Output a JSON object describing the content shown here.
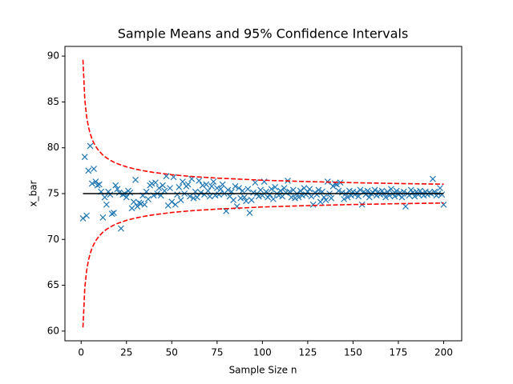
{
  "chart_data": {
    "type": "scatter",
    "title": "Sample Means and 95% Confidence Intervals",
    "xlabel": "Sample Size n",
    "ylabel": "x_bar",
    "xlim": [
      -8.95,
      209.95
    ],
    "ylim": [
      58.94,
      91.06
    ],
    "xticks": [
      0,
      25,
      50,
      75,
      100,
      125,
      150,
      175,
      200
    ],
    "yticks": [
      60,
      65,
      70,
      75,
      80,
      85,
      90
    ],
    "series": [
      {
        "type": "scatter",
        "color": "#1f77b4",
        "x": [
          1,
          2,
          3,
          4,
          5,
          6,
          7,
          8,
          9,
          10,
          11,
          12,
          13,
          14,
          15,
          16,
          17,
          18,
          19,
          20,
          21,
          22,
          23,
          24,
          25,
          26,
          27,
          28,
          29,
          30,
          31,
          32,
          33,
          34,
          35,
          36,
          37,
          38,
          39,
          40,
          41,
          42,
          43,
          44,
          45,
          46,
          47,
          48,
          49,
          50,
          51,
          52,
          53,
          54,
          55,
          56,
          57,
          58,
          59,
          60,
          61,
          62,
          63,
          64,
          65,
          66,
          67,
          68,
          69,
          70,
          71,
          72,
          73,
          74,
          75,
          76,
          77,
          78,
          79,
          80,
          81,
          82,
          83,
          84,
          85,
          86,
          87,
          88,
          89,
          90,
          91,
          92,
          93,
          94,
          95,
          96,
          97,
          98,
          99,
          100,
          101,
          102,
          103,
          104,
          105,
          106,
          107,
          108,
          109,
          110,
          111,
          112,
          113,
          114,
          115,
          116,
          117,
          118,
          119,
          120,
          121,
          122,
          123,
          124,
          125,
          126,
          127,
          128,
          129,
          130,
          131,
          132,
          133,
          134,
          135,
          136,
          137,
          138,
          139,
          140,
          141,
          142,
          143,
          144,
          145,
          146,
          147,
          148,
          149,
          150,
          151,
          152,
          153,
          154,
          155,
          156,
          157,
          158,
          159,
          160,
          161,
          162,
          163,
          164,
          165,
          166,
          167,
          168,
          169,
          170,
          171,
          172,
          173,
          174,
          175,
          176,
          177,
          178,
          179,
          180,
          181,
          182,
          183,
          184,
          185,
          186,
          187,
          188,
          189,
          190,
          191,
          192,
          193,
          194,
          195,
          196,
          197,
          198,
          199,
          200
        ],
        "values": [
          72.3,
          79.0,
          72.6,
          77.5,
          80.2,
          76.1,
          77.7,
          76.3,
          75.9,
          76.0,
          75.2,
          72.4,
          74.6,
          73.8,
          75.2,
          74.9,
          72.8,
          72.9,
          75.9,
          75.5,
          75.1,
          71.2,
          74.9,
          75.0,
          74.6,
          75.3,
          75.1,
          73.4,
          74.1,
          76.5,
          73.6,
          74.0,
          73.9,
          74.8,
          73.8,
          75.2,
          74.4,
          75.9,
          76.1,
          74.8,
          76.2,
          75.0,
          75.6,
          74.8,
          75.9,
          75.3,
          76.9,
          73.7,
          75.6,
          74.1,
          76.8,
          73.8,
          74.9,
          75.7,
          74.3,
          76.3,
          75.0,
          75.8,
          76.0,
          74.7,
          76.6,
          74.5,
          75.2,
          74.6,
          76.4,
          75.1,
          75.9,
          74.9,
          76.0,
          75.3,
          74.7,
          75.8,
          76.3,
          74.8,
          75.6,
          74.9,
          75.5,
          76.0,
          75.0,
          73.1,
          75.4,
          74.7,
          75.2,
          74.3,
          75.8,
          73.6,
          75.6,
          74.5,
          75.3,
          74.6,
          74.2,
          75.5,
          72.9,
          74.3,
          75.1,
          76.2,
          75.0,
          74.7,
          75.4,
          74.8,
          76.3,
          75.2,
          74.6,
          74.9,
          75.5,
          74.4,
          75.7,
          75.0,
          74.8,
          75.3,
          74.7,
          75.6,
          75.1,
          76.4,
          75.2,
          74.6,
          75.4,
          74.5,
          75.0,
          74.6,
          75.3,
          74.8,
          75.6,
          74.9,
          75.2,
          75.5,
          74.7,
          73.8,
          75.1,
          74.9,
          75.4,
          74.1,
          75.2,
          74.6,
          74.3,
          76.3,
          75.0,
          74.5,
          75.8,
          76.1,
          76.0,
          75.3,
          76.2,
          75.1,
          74.4,
          75.0,
          74.6,
          75.3,
          74.8,
          75.2,
          74.9,
          75.1,
          74.7,
          75.4,
          73.8,
          75.2,
          74.9,
          75.3,
          74.6,
          75.0,
          75.1,
          75.4,
          74.8,
          75.2,
          74.9,
          75.3,
          75.0,
          74.6,
          75.2,
          74.8,
          75.5,
          75.0,
          74.7,
          75.3,
          74.9,
          75.1,
          74.6,
          75.2,
          73.6,
          75.0,
          74.8,
          75.4,
          75.1,
          74.7,
          75.2,
          74.9,
          75.3,
          75.0,
          74.8,
          75.2,
          74.9,
          75.1,
          75.0,
          76.6,
          75.2,
          74.8,
          75.0,
          75.6,
          74.9,
          73.8
        ]
      },
      {
        "type": "line",
        "color": "#000000",
        "dashed": false,
        "x": [
          1,
          200
        ],
        "values": [
          75,
          75
        ]
      },
      {
        "type": "line",
        "color": "#ff0000",
        "dashed": true,
        "x": [
          1,
          2,
          3,
          4,
          5,
          6,
          7,
          8,
          9,
          10,
          12,
          14,
          16,
          18,
          20,
          25,
          30,
          35,
          40,
          50,
          60,
          75,
          100,
          125,
          150,
          175,
          200
        ],
        "values": [
          89.6,
          85.32,
          83.43,
          82.3,
          81.53,
          80.96,
          80.52,
          80.16,
          79.87,
          79.62,
          79.21,
          78.9,
          78.65,
          78.44,
          78.26,
          77.92,
          77.67,
          77.47,
          77.31,
          77.06,
          76.88,
          76.69,
          76.46,
          76.31,
          76.19,
          76.1,
          76.03
        ]
      },
      {
        "type": "line",
        "color": "#ff0000",
        "dashed": true,
        "x": [
          1,
          2,
          3,
          4,
          5,
          6,
          7,
          8,
          9,
          10,
          12,
          14,
          16,
          18,
          20,
          25,
          30,
          35,
          40,
          50,
          60,
          75,
          100,
          125,
          150,
          175,
          200
        ],
        "values": [
          60.4,
          64.68,
          66.57,
          67.7,
          68.47,
          69.04,
          69.48,
          69.84,
          70.13,
          70.38,
          70.79,
          71.1,
          71.35,
          71.56,
          71.74,
          72.08,
          72.33,
          72.53,
          72.69,
          72.94,
          73.12,
          73.31,
          73.54,
          73.69,
          73.81,
          73.9,
          73.97
        ]
      }
    ]
  }
}
